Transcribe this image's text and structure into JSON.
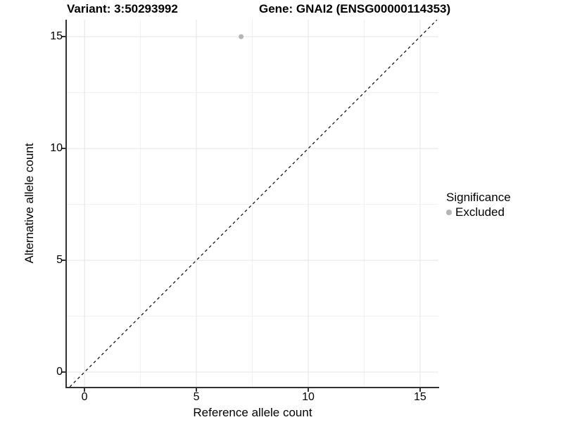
{
  "header": {
    "variant_title": "Variant: 3:50293992",
    "gene_title": "Gene: GNAI2 (ENSG00000114353)"
  },
  "chart_data": {
    "type": "scatter",
    "xlabel": "Reference allele count",
    "ylabel": "Alternative allele count",
    "x_ticks": [
      0,
      5,
      10,
      15
    ],
    "y_ticks": [
      0,
      5,
      10,
      15
    ],
    "xlim": [
      -0.79,
      15.82
    ],
    "ylim": [
      -0.66,
      15.76
    ],
    "grid": {
      "major": true,
      "minor": true,
      "minor_interval": 2.5
    },
    "identity_line": {
      "style": "dashed",
      "from": [
        -0.66,
        -0.66
      ],
      "to": [
        15.75,
        15.75
      ],
      "color": "#000000"
    },
    "series": [
      {
        "name": "Excluded",
        "color": "#b5b5b5",
        "points": [
          {
            "x": 7,
            "y": 15
          }
        ]
      }
    ],
    "legend": {
      "title": "Significance",
      "position": "right",
      "entries": [
        {
          "label": "Excluded",
          "color": "#b5b5b5"
        }
      ]
    }
  },
  "colors": {
    "grid_major": "#e4e4e4",
    "grid_minor": "#f1f1f1",
    "axis_line": "#333333",
    "point": "#b5b5b5",
    "text": "#000000"
  }
}
